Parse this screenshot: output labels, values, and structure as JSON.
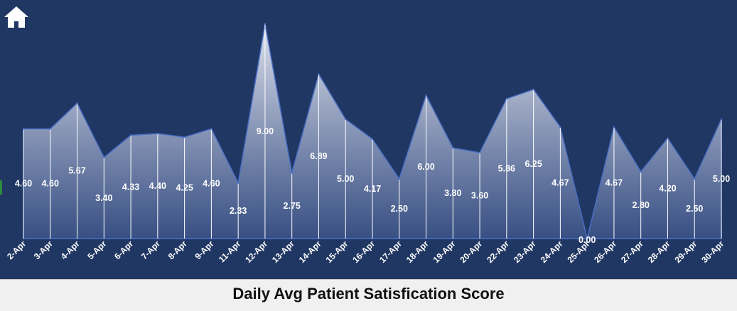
{
  "title": "Daily Avg Patient Satisfication Score",
  "home_icon": "home-icon",
  "colors": {
    "background": "#213763",
    "line": "#4a6fc4",
    "label": "#ffffff"
  },
  "chart_data": {
    "type": "area",
    "title": "Daily Avg Patient Satisfication Score",
    "xlabel": "",
    "ylabel": "",
    "categories": [
      "2-Apr",
      "3-Apr",
      "4-Apr",
      "5-Apr",
      "6-Apr",
      "7-Apr",
      "8-Apr",
      "9-Apr",
      "11-Apr",
      "12-Apr",
      "13-Apr",
      "14-Apr",
      "15-Apr",
      "16-Apr",
      "17-Apr",
      "18-Apr",
      "19-Apr",
      "20-Apr",
      "22-Apr",
      "23-Apr",
      "24-Apr",
      "25-Apr",
      "26-Apr",
      "27-Apr",
      "28-Apr",
      "29-Apr",
      "30-Apr"
    ],
    "values": [
      4.6,
      4.6,
      5.67,
      3.4,
      4.33,
      4.4,
      4.25,
      4.6,
      2.33,
      9.0,
      2.75,
      6.89,
      5.0,
      4.17,
      2.5,
      6.0,
      3.8,
      3.6,
      5.86,
      6.25,
      4.67,
      0.0,
      4.67,
      2.8,
      4.2,
      2.5,
      5.0
    ],
    "value_labels": [
      "4.60",
      "4.60",
      "5.67",
      "3.40",
      "4.33",
      "4.40",
      "4.25",
      "4.60",
      "2.33",
      "9.00",
      "2.75",
      "6.89",
      "5.00",
      "4.17",
      "2.50",
      "6.00",
      "3.80",
      "3.60",
      "5.86",
      "6.25",
      "4.67",
      "0.00",
      "4.67",
      "2.80",
      "4.20",
      "2.50",
      "5.00"
    ],
    "ylim": [
      0,
      9.5
    ],
    "grid": false,
    "legend": "none"
  }
}
